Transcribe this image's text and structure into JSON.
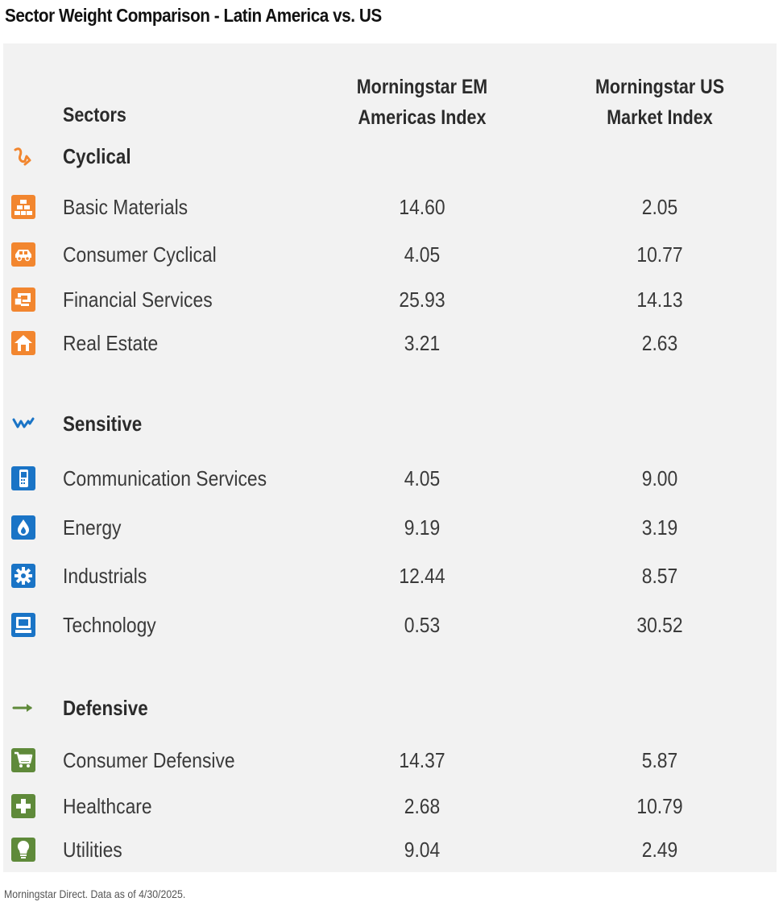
{
  "title": "Sector Weight Comparison - Latin America vs. US",
  "source": "Morningstar Direct. Data as of 4/30/2025.",
  "colors": {
    "cyclical": "#f2862f",
    "sensitive": "#1a74c6",
    "defensive": "#5f8a3a",
    "panel": "#f2f2f2"
  },
  "chart_data": {
    "type": "table",
    "title": "Sector Weight Comparison - Latin America vs. US",
    "columns": [
      "Sectors",
      "Morningstar EM Americas Index",
      "Morningstar US Market Index"
    ],
    "groups": [
      {
        "name": "Cyclical",
        "icon": "cyclical-icon",
        "rows": [
          {
            "sector": "Basic Materials",
            "icon": "basic-materials-icon",
            "em": "14.60",
            "us": "2.05"
          },
          {
            "sector": "Consumer Cyclical",
            "icon": "consumer-cyclical-icon",
            "em": "4.05",
            "us": "10.77"
          },
          {
            "sector": "Financial Services",
            "icon": "financial-services-icon",
            "em": "25.93",
            "us": "14.13"
          },
          {
            "sector": "Real Estate",
            "icon": "real-estate-icon",
            "em": "3.21",
            "us": "2.63"
          }
        ]
      },
      {
        "name": "Sensitive",
        "icon": "sensitive-icon",
        "rows": [
          {
            "sector": "Communication Services",
            "icon": "communication-services-icon",
            "em": "4.05",
            "us": "9.00"
          },
          {
            "sector": "Energy",
            "icon": "energy-icon",
            "em": "9.19",
            "us": "3.19"
          },
          {
            "sector": "Industrials",
            "icon": "industrials-icon",
            "em": "12.44",
            "us": "8.57"
          },
          {
            "sector": "Technology",
            "icon": "technology-icon",
            "em": "0.53",
            "us": "30.52"
          }
        ]
      },
      {
        "name": "Defensive",
        "icon": "defensive-icon",
        "rows": [
          {
            "sector": "Consumer Defensive",
            "icon": "consumer-defensive-icon",
            "em": "14.37",
            "us": "5.87"
          },
          {
            "sector": "Healthcare",
            "icon": "healthcare-icon",
            "em": "2.68",
            "us": "10.79"
          },
          {
            "sector": "Utilities",
            "icon": "utilities-icon",
            "em": "9.04",
            "us": "2.49"
          }
        ]
      }
    ]
  }
}
